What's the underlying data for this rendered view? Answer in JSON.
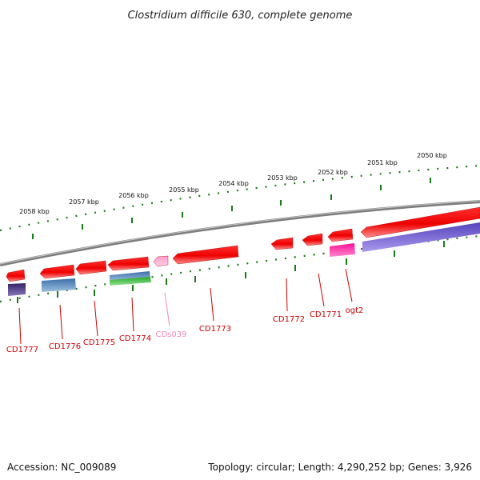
{
  "title": "Clostridium difficile 630, complete genome",
  "footer": {
    "accession": "Accession: NC_009089",
    "summary": "Topology: circular; Length: 4,290,252 bp; Genes: 3,926"
  },
  "ticks": [
    "2058 kbp",
    "2057 kbp",
    "2056 kbp",
    "2055 kbp",
    "2054 kbp",
    "2053 kbp",
    "2052 kbp",
    "2051 kbp",
    "2050 kbp"
  ],
  "genes": [
    {
      "label": "CD1777",
      "color": "#cc0000"
    },
    {
      "label": "CD1776",
      "color": "#cc0000"
    },
    {
      "label": "CD1775",
      "color": "#cc0000"
    },
    {
      "label": "CD1774",
      "color": "#cc0000"
    },
    {
      "label": "CDs039",
      "color": "#ee88bb"
    },
    {
      "label": "CD1773",
      "color": "#cc0000"
    },
    {
      "label": "CD1772",
      "color": "#cc0000"
    },
    {
      "label": "CD1771",
      "color": "#cc0000"
    },
    {
      "label": "ogt2",
      "color": "#cc0000"
    }
  ],
  "colors": {
    "cds": "#ff0000",
    "rna": "#ff99cc",
    "backbone": "#888888",
    "tick": "#1a7a1a"
  }
}
